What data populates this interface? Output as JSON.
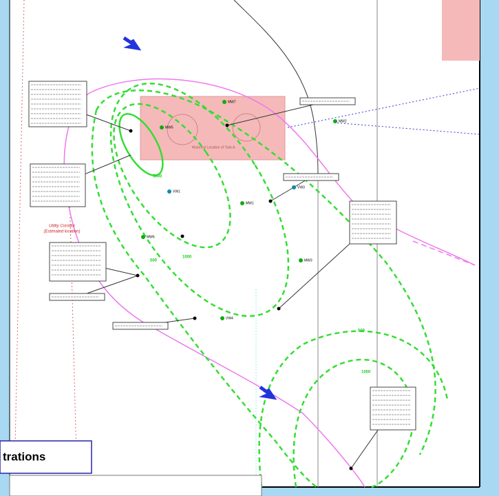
{
  "map_labels": {
    "wells": [
      "MW5",
      "MW7",
      "MW2",
      "VW1",
      "VW3",
      "MW1",
      "MW6",
      "MW3",
      "VW4"
    ],
    "contour_labels": [
      "5000",
      "1000",
      "500",
      "500",
      "1000"
    ],
    "tank_label": "Historical Location of Tank A",
    "utility_corridor": [
      "Utility Corridor",
      "(Estimated location)"
    ],
    "legend_title": "trations"
  }
}
